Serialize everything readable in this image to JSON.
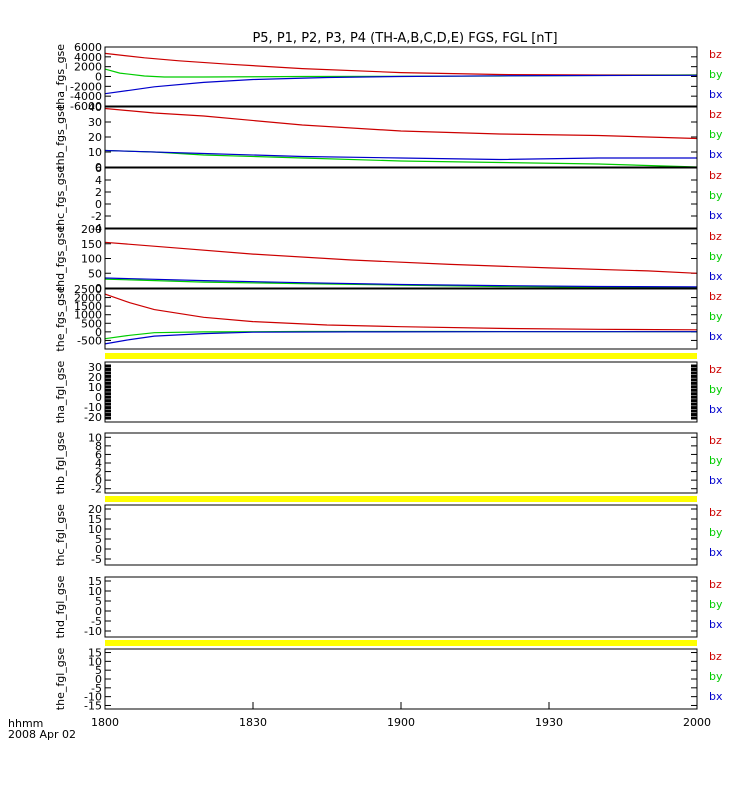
{
  "chart_data": {
    "type": "line",
    "title": "P5, P1, P2, P3, P4 (TH-A,B,C,D,E) FGS, FGL [nT]",
    "x_axis": {
      "ticks": [
        "1800",
        "1830",
        "1900",
        "1930",
        "2000"
      ],
      "label_line1": "hhmm",
      "label_line2": "2008 Apr 02",
      "range": [
        "18:00",
        "20:00"
      ]
    },
    "series_legend": [
      "bz",
      "by",
      "bx"
    ],
    "colors": {
      "bz": "#cc0000",
      "by": "#00cc00",
      "bx": "#0000cc",
      "flag": "#ffff00"
    },
    "panels": [
      {
        "ylabel": "tha_fgs_gse",
        "ylim": [
          -6000,
          6000
        ],
        "ticks": [
          "6000",
          "4000",
          "2000",
          "0",
          "-2000",
          "-4000",
          "-6000"
        ],
        "series": [
          {
            "name": "bz",
            "x": [
              0,
              8,
              15,
              25,
              40,
              60,
              80,
              100,
              120
            ],
            "y": [
              4700,
              3800,
              3200,
              2500,
              1600,
              800,
              400,
              300,
              300
            ]
          },
          {
            "name": "by",
            "x": [
              0,
              3,
              8,
              12,
              20,
              40,
              80,
              120
            ],
            "y": [
              1500,
              700,
              100,
              -100,
              -100,
              0,
              100,
              300
            ]
          },
          {
            "name": "bx",
            "x": [
              0,
              5,
              10,
              20,
              30,
              45,
              60,
              80,
              100,
              120
            ],
            "y": [
              -3500,
              -2800,
              -2100,
              -1200,
              -600,
              -200,
              0,
              150,
              200,
              250
            ]
          }
        ]
      },
      {
        "ylabel": "thb_fgs_gse",
        "ylim": [
          0,
          40
        ],
        "ticks": [
          "40",
          "30",
          "20",
          "10",
          "0"
        ],
        "series": [
          {
            "name": "bz",
            "x": [
              0,
              10,
              20,
              40,
              60,
              80,
              100,
              120
            ],
            "y": [
              39,
              36,
              34,
              28,
              24,
              22,
              21,
              19
            ]
          },
          {
            "name": "by",
            "x": [
              0,
              10,
              20,
              40,
              60,
              80,
              100,
              120
            ],
            "y": [
              11,
              10,
              8,
              6,
              4,
              3,
              2,
              0
            ]
          },
          {
            "name": "bx",
            "x": [
              0,
              20,
              40,
              60,
              80,
              100,
              120
            ],
            "y": [
              11,
              9,
              7,
              6,
              5,
              6,
              6
            ]
          }
        ]
      },
      {
        "ylabel": "thc_fgs_gse",
        "ylim": [
          -4,
          6
        ],
        "ticks": [
          "6",
          "4",
          "2",
          "0",
          "-2",
          "-4"
        ],
        "series": []
      },
      {
        "ylabel": "thd_fgs_gse",
        "ylim": [
          0,
          200
        ],
        "ticks": [
          "200",
          "150",
          "100",
          "50",
          "0"
        ],
        "series": [
          {
            "name": "bz",
            "x": [
              0,
              15,
              30,
              50,
              70,
              90,
              110,
              120
            ],
            "y": [
              155,
              135,
              115,
              95,
              80,
              68,
              58,
              50
            ]
          },
          {
            "name": "by",
            "x": [
              0,
              20,
              40,
              60,
              80,
              100,
              120
            ],
            "y": [
              30,
              20,
              15,
              10,
              5,
              3,
              2
            ]
          },
          {
            "name": "bx",
            "x": [
              0,
              20,
              40,
              60,
              80,
              100,
              120
            ],
            "y": [
              34,
              25,
              18,
              12,
              8,
              5,
              4
            ]
          }
        ]
      },
      {
        "ylabel": "the_fgs_gse",
        "ylim": [
          -1000,
          2500
        ],
        "ticks": [
          "2500",
          "2000",
          "1500",
          "1000",
          "500",
          "0",
          "-500"
        ],
        "series": [
          {
            "name": "bz",
            "x": [
              0,
              5,
              10,
              20,
              30,
              45,
              60,
              80,
              100,
              120
            ],
            "y": [
              2200,
              1700,
              1300,
              850,
              600,
              400,
              300,
              200,
              150,
              120
            ]
          },
          {
            "name": "by",
            "x": [
              0,
              5,
              10,
              20,
              40,
              70,
              100,
              120
            ],
            "y": [
              -400,
              -200,
              -50,
              0,
              20,
              20,
              10,
              10
            ]
          },
          {
            "name": "bx",
            "x": [
              0,
              5,
              10,
              20,
              30,
              50,
              80,
              120
            ],
            "y": [
              -700,
              -450,
              -250,
              -100,
              -20,
              0,
              10,
              10
            ]
          }
        ]
      },
      {
        "ylabel": "tha_fgl_gse",
        "ylim": [
          -25,
          35
        ],
        "ticks": [
          "30",
          "20",
          "10",
          "0",
          "-10",
          "-20"
        ],
        "flag": "top",
        "edge_ticks": true,
        "series": []
      },
      {
        "ylabel": "thb_fgl_gse",
        "ylim": [
          -3,
          11
        ],
        "ticks": [
          "10",
          "8",
          "6",
          "4",
          "2",
          "0",
          "-2"
        ],
        "flag": "bottom",
        "series": []
      },
      {
        "ylabel": "thc_fgl_gse",
        "ylim": [
          -8,
          22
        ],
        "ticks": [
          "20",
          "15",
          "10",
          "5",
          "0",
          "-5"
        ],
        "series": []
      },
      {
        "ylabel": "thd_fgl_gse",
        "ylim": [
          -13,
          17
        ],
        "ticks": [
          "15",
          "10",
          "5",
          "0",
          "-5",
          "-10"
        ],
        "flag": "bottom",
        "series": []
      },
      {
        "ylabel": "the_fgl_gse",
        "ylim": [
          -17,
          17
        ],
        "ticks": [
          "15",
          "10",
          "5",
          "0",
          "-5",
          "-10",
          "-15"
        ],
        "series": []
      }
    ]
  }
}
